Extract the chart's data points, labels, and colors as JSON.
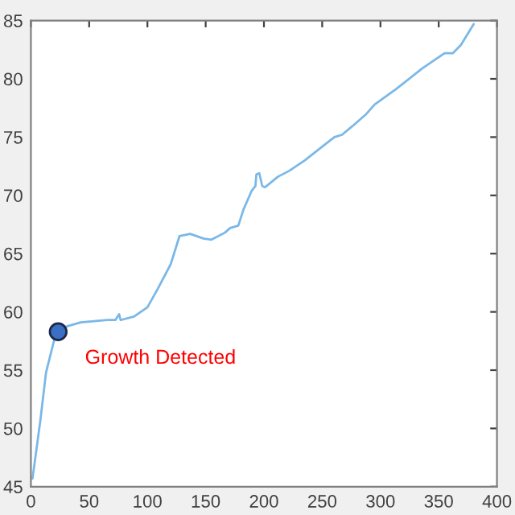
{
  "chart_data": {
    "type": "line",
    "series": [
      {
        "color": "#7ab8e8",
        "marker": "none",
        "x": [
          1.4,
          8,
          13,
          20,
          29,
          42.7,
          65.6,
          72.5,
          75.7,
          77,
          88.5,
          100,
          109,
          120,
          127.5,
          136.7,
          148,
          155,
          166.5,
          171,
          178,
          182.5,
          189.5,
          192.7,
          193.5,
          196,
          198.6,
          201,
          212,
          221.6,
          235,
          249,
          260.5,
          267,
          276.6,
          288,
          295,
          313,
          336,
          355,
          362,
          369,
          380
        ],
        "values": [
          45.7,
          50.6,
          54.8,
          57.6,
          58.7,
          59.1,
          59.3,
          59.3,
          59.8,
          59.3,
          59.6,
          60.4,
          62,
          64.1,
          66.5,
          66.7,
          66.3,
          66.2,
          66.8,
          67.2,
          67.4,
          68.8,
          70.4,
          70.8,
          71.8,
          71.9,
          70.8,
          70.7,
          71.6,
          72.1,
          73,
          74.1,
          75,
          75.2,
          76,
          77,
          77.8,
          79.1,
          80.9,
          82.2,
          82.2,
          82.9,
          84.7
        ]
      },
      {
        "type": "scatter",
        "marker": "circle",
        "color": "#3a6fc4",
        "x": [
          23.4
        ],
        "values": [
          58.3
        ]
      }
    ],
    "annotations": [
      {
        "text": "Growth Detected",
        "x": 23.4,
        "y": 58.3
      }
    ],
    "xlim": [
      0,
      400
    ],
    "ylim": [
      45,
      85
    ],
    "xticks": [
      0,
      50,
      100,
      150,
      200,
      250,
      300,
      350,
      400
    ],
    "yticks": [
      45,
      50,
      55,
      60,
      65,
      70,
      75,
      80,
      85
    ],
    "grid": false,
    "legend": false,
    "line_style": "solid"
  }
}
